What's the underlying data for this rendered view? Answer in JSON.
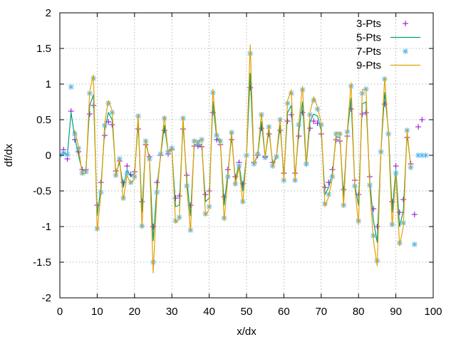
{
  "chart_data": {
    "type": "line",
    "xlabel": "x/dx",
    "ylabel": "df/dx",
    "xlim": [
      0,
      100
    ],
    "ylim": [
      -2,
      2
    ],
    "x_ticks": [
      0,
      10,
      20,
      30,
      40,
      50,
      60,
      70,
      80,
      90,
      100
    ],
    "y_ticks": [
      -2,
      -1.5,
      -1,
      -0.5,
      0,
      0.5,
      1,
      1.5,
      2
    ],
    "x_tick_labels": [
      "0",
      "10",
      "20",
      "30",
      "40",
      "50",
      "60",
      "70",
      "80",
      "90",
      "100"
    ],
    "y_tick_labels": [
      "-2",
      "-1.5",
      "-1",
      "-0.5",
      "0",
      "0.5",
      "1",
      "1.5",
      "2"
    ],
    "grid": true,
    "legend_position": "top-right",
    "series": [
      {
        "name": "3-Pts",
        "style": "points",
        "marker": "plus",
        "color": "#9400d3",
        "x": [
          0,
          1,
          2,
          3,
          4,
          5,
          6,
          7,
          8,
          9,
          10,
          11,
          12,
          13,
          14,
          15,
          16,
          17,
          18,
          19,
          20,
          21,
          22,
          23,
          24,
          25,
          26,
          27,
          28,
          29,
          30,
          31,
          32,
          33,
          34,
          35,
          36,
          37,
          38,
          39,
          40,
          41,
          42,
          43,
          44,
          45,
          46,
          47,
          48,
          49,
          50,
          51,
          52,
          53,
          54,
          55,
          56,
          57,
          58,
          59,
          60,
          61,
          62,
          63,
          64,
          65,
          66,
          67,
          68,
          69,
          70,
          71,
          72,
          73,
          74,
          75,
          76,
          77,
          78,
          79,
          80,
          81,
          82,
          83,
          84,
          85,
          86,
          87,
          88,
          89,
          90,
          91,
          92,
          93,
          94,
          95,
          96,
          97,
          98,
          99,
          100
        ],
        "y": [
          0,
          0.08,
          -0.05,
          0.62,
          0.22,
          0.05,
          -0.2,
          -0.2,
          0.58,
          0.7,
          -0.7,
          -0.38,
          0.28,
          0.47,
          0.43,
          -0.22,
          -0.08,
          -0.38,
          -0.15,
          -0.27,
          -0.23,
          0.37,
          -0.65,
          0.15,
          -0.02,
          -1,
          -0.38,
          0,
          0.35,
          0.02,
          0.08,
          -0.6,
          -0.57,
          0.37,
          -0.28,
          -0.7,
          0.13,
          0.13,
          0.12,
          -0.55,
          -0.5,
          0.6,
          0.22,
          0.15,
          -0.58,
          -0.2,
          0.22,
          -0.3,
          -0.1,
          -0.4,
          0,
          0.95,
          -0.1,
          0,
          0.38,
          -0.02,
          0.3,
          -0.1,
          -0.02,
          0.35,
          -0.25,
          0.48,
          0.57,
          -0.25,
          0.27,
          0.6,
          -0.12,
          0.38,
          0.48,
          0.45,
          0.3,
          -0.45,
          -0.38,
          -0.2,
          0.22,
          0.2,
          -0.48,
          0.27,
          0.65,
          -0.35,
          -0.55,
          0.58,
          0.6,
          -0.3,
          -0.75,
          -1,
          0.05,
          0.72,
          0.3,
          -0.65,
          -0.15,
          -0.8,
          -0.62,
          0.25,
          -0.12,
          -0.83,
          0.4,
          0.5,
          null,
          null,
          null
        ]
      },
      {
        "name": "5-Pts",
        "style": "lines",
        "color": "#009e73",
        "x": [
          0,
          1,
          2,
          3,
          4,
          5,
          6,
          7,
          8,
          9,
          10,
          11,
          12,
          13,
          14,
          15,
          16,
          17,
          18,
          19,
          20,
          21,
          22,
          23,
          24,
          25,
          26,
          27,
          28,
          29,
          30,
          31,
          32,
          33,
          34,
          35,
          36,
          37,
          38,
          39,
          40,
          41,
          42,
          43,
          44,
          45,
          46,
          47,
          48,
          49,
          50,
          51,
          52,
          53,
          54,
          55,
          56,
          57,
          58,
          59,
          60,
          61,
          62,
          63,
          64,
          65,
          66,
          67,
          68,
          69,
          70,
          71,
          72,
          73,
          74,
          75,
          76,
          77,
          78,
          79,
          80,
          81,
          82,
          83,
          84,
          85,
          86,
          87,
          88,
          89,
          90,
          91,
          92,
          93,
          94,
          95,
          96,
          97,
          98,
          99,
          100
        ],
        "y": [
          0,
          0.05,
          0,
          0.6,
          0.25,
          0,
          -0.22,
          -0.2,
          0.7,
          0.85,
          -0.85,
          -0.45,
          0.35,
          0.6,
          0.5,
          -0.25,
          -0.1,
          -0.45,
          -0.2,
          -0.3,
          -0.25,
          0.45,
          -0.8,
          0.18,
          -0.05,
          -1.2,
          -0.45,
          0,
          0.42,
          0.05,
          0.08,
          -0.72,
          -0.7,
          0.45,
          -0.35,
          -0.85,
          0.15,
          0.15,
          0.15,
          -0.65,
          -0.6,
          0.75,
          0.25,
          0.17,
          -0.7,
          -0.25,
          0.27,
          -0.35,
          -0.12,
          -0.5,
          0,
          1.15,
          -0.12,
          0,
          0.47,
          -0.03,
          0.36,
          -0.12,
          -0.02,
          0.42,
          -0.3,
          0.6,
          0.7,
          -0.3,
          0.33,
          0.75,
          -0.15,
          0.47,
          0.58,
          0.55,
          0.35,
          -0.55,
          -0.45,
          -0.25,
          0.26,
          0.25,
          -0.58,
          0.32,
          0.8,
          -0.42,
          -0.7,
          0.72,
          0.75,
          -0.36,
          -0.92,
          -1.22,
          0.05,
          0.88,
          0.35,
          -0.8,
          -0.2,
          -1.0,
          -0.78,
          0.3,
          -0.15,
          null,
          null,
          null,
          null,
          null,
          null
        ]
      },
      {
        "name": "7-Pts",
        "style": "points",
        "marker": "asterisk",
        "color": "#56b4e9",
        "x": [
          0,
          1,
          2,
          3,
          4,
          5,
          6,
          7,
          8,
          9,
          10,
          11,
          12,
          13,
          14,
          15,
          16,
          17,
          18,
          19,
          20,
          21,
          22,
          23,
          24,
          25,
          26,
          27,
          28,
          29,
          30,
          31,
          32,
          33,
          34,
          35,
          36,
          37,
          38,
          39,
          40,
          41,
          42,
          43,
          44,
          45,
          46,
          47,
          48,
          49,
          50,
          51,
          52,
          53,
          54,
          55,
          56,
          57,
          58,
          59,
          60,
          61,
          62,
          63,
          64,
          65,
          66,
          67,
          68,
          69,
          70,
          71,
          72,
          73,
          74,
          75,
          76,
          77,
          78,
          79,
          80,
          81,
          82,
          83,
          84,
          85,
          86,
          87,
          88,
          89,
          90,
          91,
          92,
          93,
          94,
          95,
          96,
          97,
          98,
          99,
          100
        ],
        "y": [
          0,
          0.03,
          0.01,
          0.96,
          0.3,
          0.1,
          -0.25,
          -0.23,
          0.87,
          1.08,
          -1.03,
          -0.52,
          0.42,
          0.73,
          0.6,
          -0.28,
          -0.05,
          -0.6,
          -0.25,
          -0.38,
          -0.3,
          0.55,
          -0.99,
          0.2,
          -0.05,
          -1.5,
          -0.52,
          0.02,
          0.52,
          0.05,
          0.1,
          -0.92,
          -0.87,
          0.52,
          -0.43,
          -1.05,
          0.2,
          0.18,
          0.22,
          -0.82,
          -0.72,
          0.88,
          0.28,
          0.2,
          -0.88,
          -0.3,
          0.32,
          -0.4,
          -0.15,
          -0.65,
          0,
          1.43,
          -0.12,
          0.02,
          0.57,
          -0.03,
          0.4,
          -0.15,
          -0.02,
          0.5,
          -0.35,
          0.73,
          0.87,
          -0.35,
          0.43,
          0.92,
          -0.12,
          0.57,
          0.77,
          0.65,
          0.43,
          -0.68,
          -0.55,
          -0.3,
          0.3,
          0.3,
          -0.7,
          0.33,
          0.97,
          -0.43,
          -0.92,
          0.87,
          0.93,
          -0.42,
          -1.13,
          -1.48,
          0.05,
          1.07,
          0.3,
          -0.97,
          -0.25,
          -1.23,
          -0.95,
          0.35,
          -0.17,
          -1.25,
          0,
          0,
          0,
          null,
          null
        ]
      },
      {
        "name": "9-Pts",
        "style": "lines",
        "color": "#e69f00",
        "x": [
          0,
          1,
          2,
          3,
          4,
          5,
          6,
          7,
          8,
          9,
          10,
          11,
          12,
          13,
          14,
          15,
          16,
          17,
          18,
          19,
          20,
          21,
          22,
          23,
          24,
          25,
          26,
          27,
          28,
          29,
          30,
          31,
          32,
          33,
          34,
          35,
          36,
          37,
          38,
          39,
          40,
          41,
          42,
          43,
          44,
          45,
          46,
          47,
          48,
          49,
          50,
          51,
          52,
          53,
          54,
          55,
          56,
          57,
          58,
          59,
          60,
          61,
          62,
          63,
          64,
          65,
          66,
          67,
          68,
          69,
          70,
          71,
          72,
          73,
          74,
          75,
          76,
          77,
          78,
          79,
          80,
          81,
          82,
          83,
          84,
          85,
          86,
          87,
          88,
          89,
          90,
          91,
          92,
          93,
          94,
          95,
          96,
          97,
          98,
          99,
          100
        ],
        "y": [
          null,
          null,
          null,
          null,
          0.35,
          0.12,
          -0.27,
          -0.25,
          0.9,
          1.13,
          -1.07,
          -0.55,
          0.45,
          0.77,
          0.63,
          -0.3,
          -0.05,
          -0.63,
          -0.28,
          -0.4,
          -0.33,
          0.58,
          -1.03,
          0.21,
          -0.05,
          -1.65,
          -0.55,
          0.02,
          0.55,
          0.05,
          0.1,
          -0.95,
          -0.9,
          0.55,
          -0.45,
          -1.07,
          0.21,
          0.2,
          0.23,
          -0.85,
          -0.75,
          0.93,
          0.3,
          0.21,
          -0.92,
          -0.32,
          0.34,
          -0.42,
          -0.16,
          -0.68,
          0,
          1.55,
          -0.12,
          0.02,
          0.6,
          -0.03,
          0.42,
          -0.16,
          -0.02,
          0.53,
          -0.37,
          0.77,
          0.92,
          -0.37,
          0.45,
          0.97,
          -0.12,
          0.6,
          0.82,
          0.68,
          0.45,
          -0.72,
          -0.58,
          -0.32,
          0.32,
          0.32,
          -0.73,
          0.35,
          1.02,
          -0.45,
          -0.97,
          0.92,
          0.93,
          -0.45,
          -1.2,
          -1.55,
          0.05,
          1.1,
          0.3,
          -1.0,
          -0.27,
          -1.27,
          -1.0,
          0.36,
          -0.18,
          null,
          null,
          null,
          null,
          null,
          null
        ]
      }
    ]
  }
}
